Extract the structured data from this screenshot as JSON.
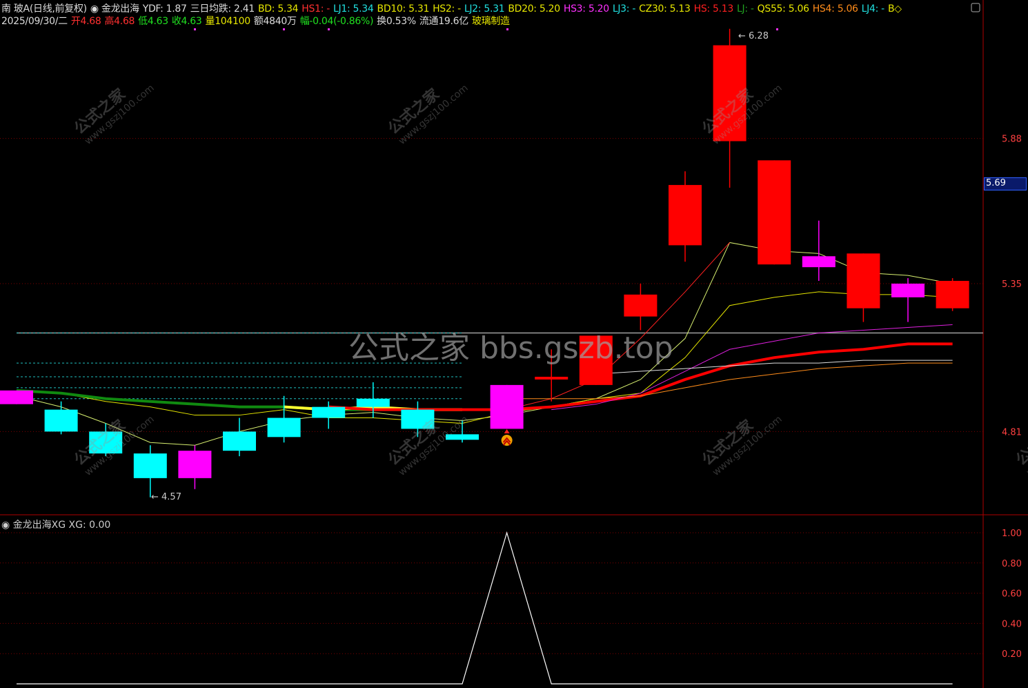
{
  "header": {
    "row1": [
      {
        "t": "南 玻A(日线,前复权)",
        "c": "#dddddd"
      },
      {
        "t": "◉ 金龙出海",
        "c": "#dddddd"
      },
      {
        "t": "YDF: 1.87",
        "c": "#dddddd"
      },
      {
        "t": "三日均跌: 2.41",
        "c": "#dddddd"
      },
      {
        "t": "BD: 5.34",
        "c": "#e6e600"
      },
      {
        "t": "HS1: -",
        "c": "#ff3030"
      },
      {
        "t": "LJ1: 5.34",
        "c": "#20e0e0"
      },
      {
        "t": "BD10: 5.31",
        "c": "#e6e600"
      },
      {
        "t": "HS2: -",
        "c": "#e6e600"
      },
      {
        "t": "LJ2: 5.31",
        "c": "#20e0e0"
      },
      {
        "t": "BD20: 5.20",
        "c": "#e6e600"
      },
      {
        "t": "HS3: 5.20",
        "c": "#ff30ff"
      },
      {
        "t": "LJ3: -",
        "c": "#20e0e0"
      },
      {
        "t": "CZ30: 5.13",
        "c": "#e6e600"
      },
      {
        "t": "HS: 5.13",
        "c": "#ff2020"
      },
      {
        "t": "LJ: -",
        "c": "#20a020"
      },
      {
        "t": "QS55: 5.06",
        "c": "#e6e600"
      },
      {
        "t": "HS4: 5.06",
        "c": "#ff8c1a"
      },
      {
        "t": "LJ4: -",
        "c": "#20e0e0"
      },
      {
        "t": "B◇",
        "c": "#e6e600"
      }
    ],
    "row2": [
      {
        "t": "2025/09/30/二",
        "c": "#dddddd"
      },
      {
        "t": "开4.68",
        "c": "#ff3030"
      },
      {
        "t": "高4.68",
        "c": "#ff3030"
      },
      {
        "t": "低4.63",
        "c": "#20e020"
      },
      {
        "t": "收4.63",
        "c": "#20e020"
      },
      {
        "t": "量104100",
        "c": "#e6e600"
      },
      {
        "t": "额4840万",
        "c": "#dddddd"
      },
      {
        "t": "幅-0.04(-0.86%)",
        "c": "#20e020"
      },
      {
        "t": "换0.53%",
        "c": "#dddddd"
      },
      {
        "t": "流通19.6亿",
        "c": "#dddddd"
      },
      {
        "t": "玻璃制造",
        "c": "#e6e600"
      }
    ]
  },
  "watermark": {
    "brand": "公式之家",
    "site": "www.gszj100.com",
    "center": "公式之家 bbs.gszb.top"
  },
  "price_tag": "5.69",
  "indicator_title": "◉ 金龙出海XG  XG: 0.00",
  "chart_data": [
    {
      "type": "candlestick",
      "ylim": [
        4.5,
        6.35
      ],
      "yticks": [
        "5.88",
        "5.35",
        "4.81"
      ],
      "grid": true,
      "annotations": {
        "high": "6.28",
        "low": "4.57"
      },
      "candles": [
        {
          "o": 4.96,
          "h": 4.96,
          "l": 4.91,
          "c": 4.91,
          "color": "#ff00ff"
        },
        {
          "o": 4.89,
          "h": 4.92,
          "l": 4.8,
          "c": 4.81,
          "color": "#00ffff"
        },
        {
          "o": 4.81,
          "h": 4.84,
          "l": 4.72,
          "c": 4.73,
          "color": "#00ffff"
        },
        {
          "o": 4.73,
          "h": 4.76,
          "l": 4.57,
          "c": 4.64,
          "color": "#00ffff"
        },
        {
          "o": 4.64,
          "h": 4.76,
          "l": 4.6,
          "c": 4.74,
          "color": "#ff00ff"
        },
        {
          "o": 4.74,
          "h": 4.86,
          "l": 4.72,
          "c": 4.81,
          "color": "#00ffff"
        },
        {
          "o": 4.79,
          "h": 4.94,
          "l": 4.77,
          "c": 4.86,
          "color": "#00ffff"
        },
        {
          "o": 4.86,
          "h": 4.92,
          "l": 4.82,
          "c": 4.9,
          "color": "#00ffff"
        },
        {
          "o": 4.9,
          "h": 4.99,
          "l": 4.86,
          "c": 4.93,
          "color": "#00ffff"
        },
        {
          "o": 4.89,
          "h": 4.92,
          "l": 4.79,
          "c": 4.82,
          "color": "#00ffff"
        },
        {
          "o": 4.8,
          "h": 4.85,
          "l": 4.77,
          "c": 4.78,
          "color": "#00ffff"
        },
        {
          "o": 4.82,
          "h": 4.98,
          "l": 4.82,
          "c": 4.98,
          "color": "#ff00ff"
        },
        {
          "o": 5.0,
          "h": 5.11,
          "l": 4.92,
          "c": 5.01,
          "color": "#ff0000"
        },
        {
          "o": 4.98,
          "h": 5.16,
          "l": 4.98,
          "c": 5.16,
          "color": "#ff0000"
        },
        {
          "o": 5.23,
          "h": 5.35,
          "l": 5.18,
          "c": 5.31,
          "color": "#ff0000"
        },
        {
          "o": 5.49,
          "h": 5.76,
          "l": 5.43,
          "c": 5.71,
          "color": "#ff0000"
        },
        {
          "o": 5.87,
          "h": 6.28,
          "l": 5.7,
          "c": 6.22,
          "color": "#ff0000"
        },
        {
          "o": 5.8,
          "h": 5.8,
          "l": 5.42,
          "c": 5.42,
          "color": "#ff0000"
        },
        {
          "o": 5.45,
          "h": 5.58,
          "l": 5.36,
          "c": 5.41,
          "color": "#ff00ff"
        },
        {
          "o": 5.46,
          "h": 5.46,
          "l": 5.21,
          "c": 5.26,
          "color": "#ff0000"
        },
        {
          "o": 5.35,
          "h": 5.37,
          "l": 5.21,
          "c": 5.3,
          "color": "#ff00ff"
        },
        {
          "o": 5.36,
          "h": 5.37,
          "l": 5.25,
          "c": 5.26,
          "color": "#ff0000"
        }
      ],
      "lines": [
        {
          "color": "#d8f070",
          "width": 1,
          "values": [
            4.94,
            4.9,
            4.84,
            4.77,
            4.76,
            4.81,
            4.85,
            4.87,
            4.88,
            4.86,
            4.85,
            4.87,
            4.9,
            4.93,
            5.0,
            5.15,
            5.5,
            5.47,
            5.46,
            5.39,
            5.38,
            5.35
          ]
        },
        {
          "color": "#e6e600",
          "width": 1,
          "values": [
            4.96,
            4.95,
            4.92,
            4.9,
            4.87,
            4.87,
            4.89,
            4.86,
            4.86,
            4.85,
            4.84,
            4.88,
            4.9,
            4.93,
            4.95,
            5.08,
            5.27,
            5.3,
            5.32,
            5.31,
            5.31,
            5.3
          ]
        },
        {
          "color": "#ff2020",
          "width": 1,
          "values": [
            null,
            null,
            null,
            null,
            null,
            null,
            null,
            null,
            null,
            null,
            null,
            4.89,
            4.93,
            5.0,
            5.15,
            5.32,
            5.5,
            null,
            null,
            null,
            null,
            null
          ]
        },
        {
          "color": "#108a10",
          "width": 4,
          "values": [
            4.96,
            4.95,
            4.93,
            4.92,
            4.91,
            4.9,
            4.9,
            4.89,
            4.89,
            4.89,
            4.89,
            null,
            null,
            null,
            null,
            null,
            null,
            null,
            null,
            null,
            null,
            null
          ]
        },
        {
          "color": "#ffff30",
          "width": 4,
          "values": [
            null,
            null,
            null,
            null,
            null,
            null,
            4.9,
            4.89,
            4.9,
            4.89,
            4.89,
            null,
            null,
            null,
            null,
            null,
            null,
            null,
            null,
            null,
            null,
            null
          ]
        },
        {
          "color": "#ff0000",
          "width": 4,
          "values": [
            null,
            null,
            null,
            null,
            null,
            null,
            null,
            4.9,
            4.89,
            4.89,
            4.89,
            4.89,
            4.9,
            4.92,
            4.94,
            5.0,
            5.05,
            5.08,
            5.1,
            5.11,
            5.13,
            5.13
          ]
        },
        {
          "color": "#e020e0",
          "width": 1,
          "values": [
            null,
            null,
            null,
            null,
            null,
            null,
            null,
            null,
            null,
            null,
            null,
            null,
            4.89,
            4.91,
            4.95,
            5.03,
            5.11,
            5.14,
            5.17,
            5.18,
            5.19,
            5.2
          ]
        },
        {
          "color": "#e0e0e0",
          "width": 1,
          "values": [
            null,
            null,
            null,
            null,
            null,
            null,
            null,
            null,
            null,
            null,
            null,
            null,
            null,
            5.02,
            5.03,
            5.04,
            5.05,
            5.06,
            5.06,
            5.07,
            5.07,
            5.07
          ]
        },
        {
          "color": "#ff8c1a",
          "width": 1,
          "values": [
            null,
            null,
            null,
            null,
            null,
            null,
            null,
            null,
            null,
            null,
            null,
            4.93,
            4.93,
            4.93,
            4.94,
            4.97,
            5.0,
            5.02,
            5.04,
            5.05,
            5.06,
            5.06
          ]
        }
      ],
      "hlines": [
        {
          "price": 5.17,
          "color": "#a0a0a0",
          "dash": false
        },
        {
          "price": 5.17,
          "color": "#20c0c0",
          "dash": true
        },
        {
          "price": 5.06,
          "color": "#20c0c0",
          "dash": true
        },
        {
          "price": 5.01,
          "color": "#20c0c0",
          "dash": true
        },
        {
          "price": 4.97,
          "color": "#20c0c0",
          "dash": true
        },
        {
          "price": 4.93,
          "color": "#20c0c0",
          "dash": true
        }
      ],
      "signal_index": 11
    },
    {
      "type": "line",
      "title": "金龙出海XG",
      "ylim": [
        0,
        1.1
      ],
      "yticks": [
        "1.00",
        "0.80",
        "0.60",
        "0.40",
        "0.20"
      ],
      "grid": true,
      "values": [
        0,
        0,
        0,
        0,
        0,
        0,
        0,
        0,
        0,
        0,
        0,
        1,
        0,
        0,
        0,
        0,
        0,
        0,
        0,
        0,
        0,
        0
      ]
    }
  ]
}
